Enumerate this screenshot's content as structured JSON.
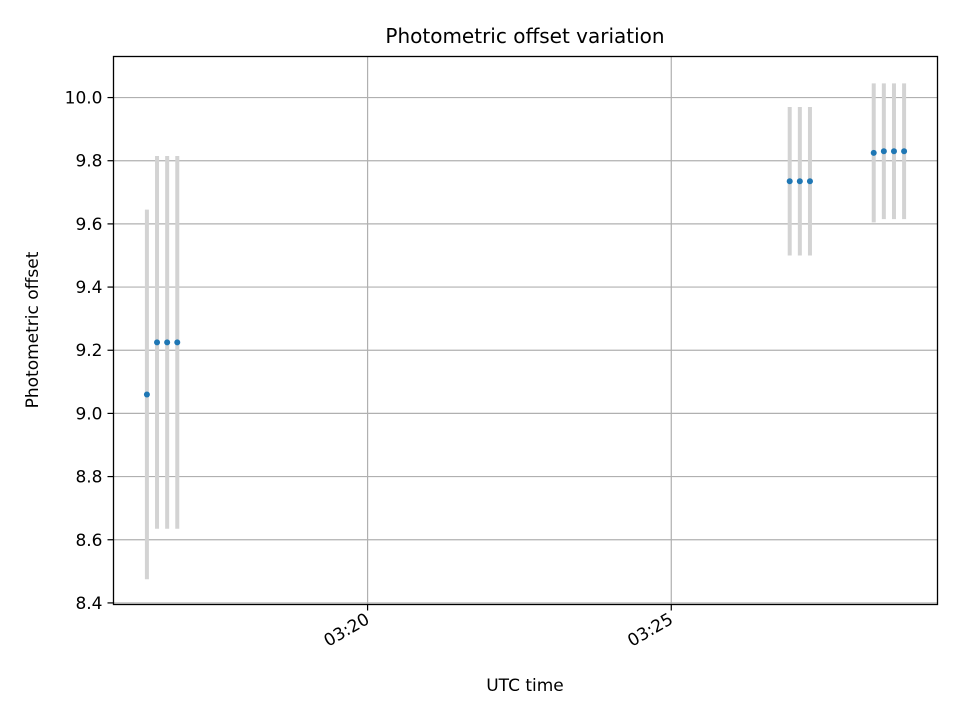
{
  "chart_data": {
    "type": "scatter",
    "title": "Photometric offset variation",
    "xlabel": "UTC time",
    "ylabel": "Photometric offset",
    "x_unit": "UTC time (HH:MM:SS)",
    "xlim": [
      "03:15:49",
      "03:29:23"
    ],
    "ylim": [
      8.395,
      10.13
    ],
    "x_ticks": [
      "03:20",
      "03:25"
    ],
    "y_ticks": [
      8.4,
      8.6,
      8.8,
      9.0,
      9.2,
      9.4,
      9.6,
      9.8,
      10.0
    ],
    "grid": true,
    "errorbar_color": "#d3d3d3",
    "marker_color": "#1f77b4",
    "points": [
      {
        "t": "03:16:22",
        "y": 9.06,
        "err": 0.585
      },
      {
        "t": "03:16:32",
        "y": 9.225,
        "err": 0.59
      },
      {
        "t": "03:16:42",
        "y": 9.225,
        "err": 0.59
      },
      {
        "t": "03:16:52",
        "y": 9.225,
        "err": 0.59
      },
      {
        "t": "03:26:57",
        "y": 9.735,
        "err": 0.235
      },
      {
        "t": "03:27:07",
        "y": 9.735,
        "err": 0.235
      },
      {
        "t": "03:27:17",
        "y": 9.735,
        "err": 0.235
      },
      {
        "t": "03:28:20",
        "y": 9.825,
        "err": 0.22
      },
      {
        "t": "03:28:30",
        "y": 9.83,
        "err": 0.215
      },
      {
        "t": "03:28:40",
        "y": 9.83,
        "err": 0.215
      },
      {
        "t": "03:28:50",
        "y": 9.83,
        "err": 0.215
      }
    ]
  }
}
